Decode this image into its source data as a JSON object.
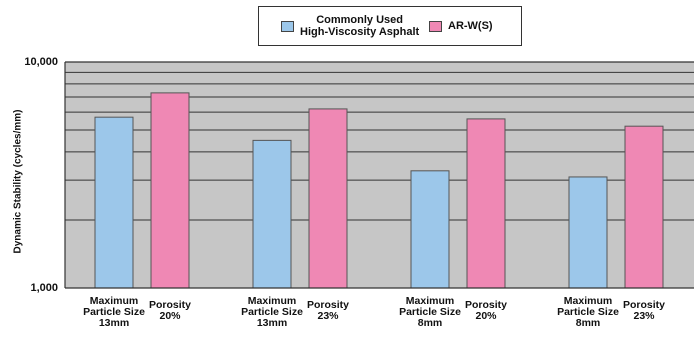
{
  "chart_data": {
    "type": "bar",
    "y_scale": "log",
    "ylim": [
      1000,
      10000
    ],
    "yticks": [
      "10,000",
      "1,000"
    ],
    "ylabel": "Dynamic Stability (cycles/mm)",
    "grid": true,
    "legend_position": "top-center",
    "groups": [
      {
        "categories": [
          "Maximum\nParticle Size\n13mm",
          "Porosity\n20%"
        ]
      },
      {
        "categories": [
          "Maximum\nParticle Size\n13mm",
          "Porosity\n23%"
        ]
      },
      {
        "categories": [
          "Maximum\nParticle Size\n8mm",
          "Porosity\n20%"
        ]
      },
      {
        "categories": [
          "Maximum\nParticle Size\n8mm",
          "Porosity\n23%"
        ]
      }
    ],
    "series": [
      {
        "name": "Commonly Used\nHigh-Viscosity Asphalt",
        "color": "#9cc7ea",
        "values": [
          5700,
          4500,
          3300,
          3100
        ]
      },
      {
        "name": "AR-W(S)",
        "color": "#ef88b4",
        "values": [
          7300,
          6200,
          5600,
          5200
        ]
      }
    ]
  }
}
